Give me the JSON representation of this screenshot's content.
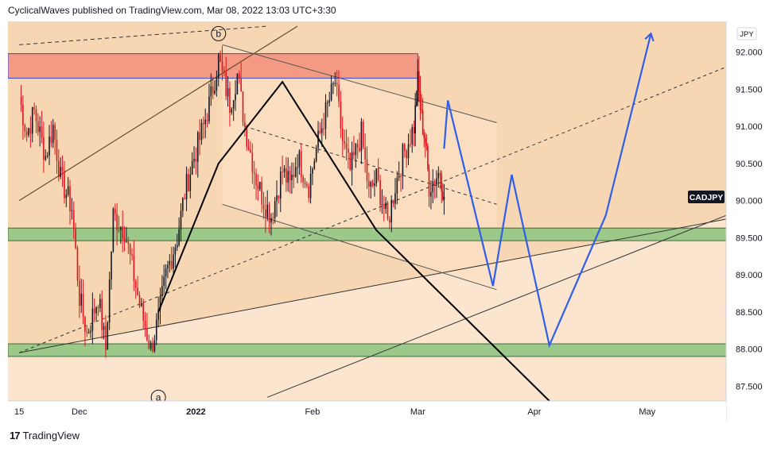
{
  "header": {
    "text": "CyclicalWaves published on TradingView.com, Mar 08, 2022 13:03 UTC+3:30"
  },
  "footer": {
    "logo_glyph": "17",
    "brand": "TradingView"
  },
  "colors": {
    "background_band_upper": "#f7d7b3",
    "background_band_lower": "#fbe5cf",
    "resistance_zone": "#f49a84",
    "support_zone": "#9cc98a",
    "candle_up": "#131722",
    "candle_down": "#e1141e",
    "projection": "#2f5fe8",
    "wave_line": "#000000",
    "channel_line": "#555555",
    "price_badge_bg": "#131722",
    "price_badge_fg": "#ffffff"
  },
  "chart_data": {
    "type": "candlestick",
    "symbol_label": "CADJPY",
    "currency_label": "JPY",
    "x_tick_labels": [
      "15",
      "Dec",
      "2022",
      "Feb",
      "Mar",
      "Apr",
      "May"
    ],
    "y_tick_labels": [
      "92.000",
      "91.500",
      "91.000",
      "90.500",
      "90.000",
      "89.500",
      "89.000",
      "88.500",
      "88.000",
      "87.500"
    ],
    "ylim": [
      87.3,
      92.35
    ],
    "last_price": 90.05,
    "wave_labels": [
      "b",
      "a"
    ],
    "resistance_zone": [
      91.65,
      91.98
    ],
    "support_zones": [
      [
        89.46,
        89.63
      ],
      [
        87.9,
        88.07
      ]
    ],
    "price_path": [
      [
        "Nov 15",
        91.4
      ],
      [
        "Nov 17",
        90.9
      ],
      [
        "Nov 19",
        91.2
      ],
      [
        "Nov 22",
        90.6
      ],
      [
        "Nov 24",
        91.0
      ],
      [
        "Nov 26",
        90.3
      ],
      [
        "Nov 29",
        89.9
      ],
      [
        "Dec 01",
        88.7
      ],
      [
        "Dec 03",
        88.2
      ],
      [
        "Dec 06",
        88.7
      ],
      [
        "Dec 08",
        88.0
      ],
      [
        "Dec 10",
        89.8
      ],
      [
        "Dec 13",
        89.6
      ],
      [
        "Dec 15",
        89.1
      ],
      [
        "Dec 17",
        88.6
      ],
      [
        "Dec 20",
        88.0
      ],
      [
        "Dec 22",
        88.4
      ],
      [
        "Dec 24",
        89.0
      ],
      [
        "Dec 27",
        89.5
      ],
      [
        "Dec 29",
        90.1
      ],
      [
        "Dec 31",
        90.5
      ],
      [
        "Jan 03",
        91.0
      ],
      [
        "Jan 05",
        91.4
      ],
      [
        "Jan 07",
        91.9
      ],
      [
        "Jan 10",
        91.3
      ],
      [
        "Jan 12",
        91.7
      ],
      [
        "Jan 14",
        91.0
      ],
      [
        "Jan 17",
        90.3
      ],
      [
        "Jan 19",
        90.0
      ],
      [
        "Jan 21",
        89.8
      ],
      [
        "Jan 24",
        90.4
      ],
      [
        "Jan 26",
        90.2
      ],
      [
        "Jan 28",
        90.6
      ],
      [
        "Jan 31",
        90.2
      ],
      [
        "Feb 02",
        90.7
      ],
      [
        "Feb 04",
        91.1
      ],
      [
        "Feb 07",
        91.6
      ],
      [
        "Feb 09",
        90.8
      ],
      [
        "Feb 11",
        90.4
      ],
      [
        "Feb 14",
        90.9
      ],
      [
        "Feb 16",
        90.1
      ],
      [
        "Feb 18",
        90.3
      ],
      [
        "Feb 21",
        89.7
      ],
      [
        "Feb 23",
        90.2
      ],
      [
        "Feb 25",
        90.6
      ],
      [
        "Feb 28",
        91.0
      ],
      [
        "Mar 01",
        91.6
      ],
      [
        "Mar 02",
        91.1
      ],
      [
        "Mar 03",
        90.8
      ],
      [
        "Mar 04",
        90.2
      ],
      [
        "Mar 07",
        90.4
      ],
      [
        "Mar 08",
        90.05
      ]
    ],
    "projection_path": [
      [
        "Mar 08",
        90.7
      ],
      [
        "Mar 09",
        91.35
      ],
      [
        "Mar 21",
        88.85
      ],
      [
        "Mar 26",
        90.35
      ],
      [
        "Apr 05",
        88.05
      ],
      [
        "Apr 20",
        89.8
      ],
      [
        "May 02",
        92.25
      ]
    ],
    "wave_path": [
      [
        "Dec 22",
        88.5
      ],
      [
        "Jan 07",
        90.5
      ],
      [
        "Jan 24",
        91.6
      ],
      [
        "Feb 18",
        89.6
      ],
      [
        "Apr 05",
        87.3
      ]
    ],
    "descending_channel": {
      "upper": [
        [
          "Jan 08",
          92.1
        ],
        [
          "Mar 22",
          91.05
        ]
      ],
      "lower": [
        [
          "Jan 08",
          89.95
        ],
        [
          "Mar 22",
          88.8
        ]
      ],
      "mid": [
        [
          "Jan 14",
          91.0
        ],
        [
          "Mar 22",
          89.95
        ]
      ]
    },
    "rising_channel": {
      "upper": [
        [
          "Nov 15",
          90.0
        ],
        [
          "Jan 28",
          92.35
        ]
      ],
      "lower": [
        [
          "Nov 15",
          87.95
        ],
        [
          "May 22",
          89.75
        ]
      ],
      "mid_dashed": [
        [
          "Nov 15",
          87.95
        ],
        [
          "May 22",
          91.8
        ]
      ],
      "top_dashed": [
        [
          "Nov 15",
          92.1
        ],
        [
          "Jan 20",
          92.35
        ]
      ],
      "far_lower": [
        [
          "Jan 20",
          87.35
        ],
        [
          "May 22",
          89.8
        ]
      ]
    },
    "date_range": [
      "Nov 12",
      "May 22"
    ]
  }
}
